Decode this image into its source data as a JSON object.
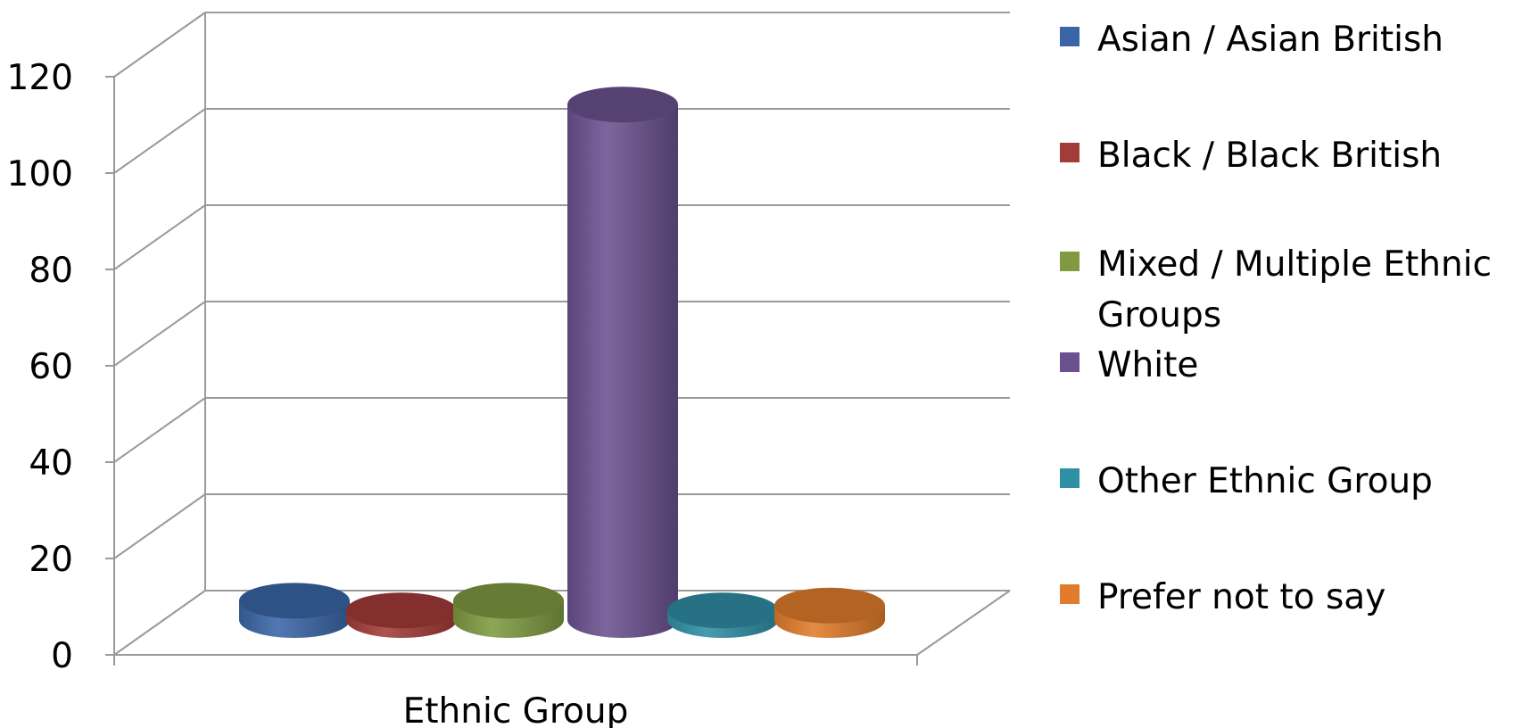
{
  "chart_data": {
    "type": "bar",
    "subtype": "3d-cylinder",
    "categories": [
      "Ethnic Group"
    ],
    "xlabel": "Ethnic Group",
    "ylabel": "",
    "title": "",
    "ylim": [
      0,
      120
    ],
    "yticks": [
      "0",
      "20",
      "40",
      "60",
      "80",
      "100",
      "120"
    ],
    "grid": true,
    "legend_position": "right",
    "series": [
      {
        "name": "Asian / Asian British",
        "values": [
          4
        ],
        "color": "#3A66A7"
      },
      {
        "name": "Black / Black British",
        "values": [
          2
        ],
        "color": "#A33B38"
      },
      {
        "name": "Mixed / Multiple Ethnic Groups",
        "values": [
          4
        ],
        "color": "#7F9A41"
      },
      {
        "name": "White",
        "values": [
          107
        ],
        "color": "#6B5190"
      },
      {
        "name": "Other Ethnic Group",
        "values": [
          2
        ],
        "color": "#2F8FA5"
      },
      {
        "name": "Prefer not to say",
        "values": [
          3
        ],
        "color": "#E07C2B"
      }
    ]
  }
}
